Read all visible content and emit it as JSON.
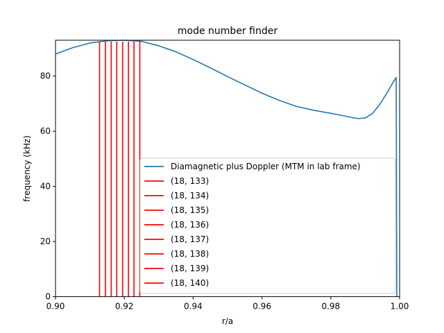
{
  "chart_data": {
    "type": "line",
    "title": "mode number finder",
    "xlabel": "r/a",
    "ylabel": "frequency (kHz)",
    "xlim": [
      0.9,
      1.0
    ],
    "ylim": [
      0,
      93
    ],
    "xticks": [
      0.9,
      0.92,
      0.94,
      0.96,
      0.98,
      1.0
    ],
    "xtick_labels": [
      "0.90",
      "0.92",
      "0.94",
      "0.96",
      "0.98",
      "1.00"
    ],
    "yticks": [
      0,
      20,
      40,
      60,
      80
    ],
    "ytick_labels": [
      "0",
      "20",
      "40",
      "60",
      "80"
    ],
    "grid": false,
    "legend_position": "lower-right",
    "series": [
      {
        "name": "Diamagnetic plus Doppler (MTM in lab frame)",
        "color": "#1f77b4",
        "x": [
          0.9,
          0.905,
          0.91,
          0.915,
          0.92,
          0.925,
          0.93,
          0.935,
          0.94,
          0.945,
          0.95,
          0.955,
          0.96,
          0.965,
          0.97,
          0.975,
          0.98,
          0.983,
          0.986,
          0.988,
          0.99,
          0.992,
          0.994,
          0.996,
          0.998,
          0.999,
          0.9991,
          0.9992
        ],
        "y": [
          88.0,
          90.3,
          92.0,
          92.8,
          93.0,
          92.6,
          91.0,
          88.8,
          86.0,
          83.0,
          79.8,
          76.8,
          73.8,
          71.2,
          69.0,
          67.6,
          66.5,
          65.8,
          65.0,
          64.6,
          64.8,
          66.3,
          69.3,
          73.2,
          77.5,
          79.5,
          40.0,
          0.0
        ]
      },
      {
        "name": "(18, 133)",
        "color": "#ff0000",
        "x": [
          0.9128,
          0.9128
        ],
        "y": [
          0,
          92.5
        ]
      },
      {
        "name": "(18, 134)",
        "color": "#ff0000",
        "x": [
          0.9145,
          0.9145
        ],
        "y": [
          0,
          92.5
        ]
      },
      {
        "name": "(18, 135)",
        "color": "#ff0000",
        "x": [
          0.9162,
          0.9162
        ],
        "y": [
          0,
          92.5
        ]
      },
      {
        "name": "(18, 136)",
        "color": "#ff0000",
        "x": [
          0.9178,
          0.9178
        ],
        "y": [
          0,
          92.5
        ]
      },
      {
        "name": "(18, 137)",
        "color": "#ff0000",
        "x": [
          0.9195,
          0.9195
        ],
        "y": [
          0,
          92.5
        ]
      },
      {
        "name": "(18, 138)",
        "color": "#ff0000",
        "x": [
          0.9212,
          0.9212
        ],
        "y": [
          0,
          92.5
        ]
      },
      {
        "name": "(18, 139)",
        "color": "#ff0000",
        "x": [
          0.9228,
          0.9228
        ],
        "y": [
          0,
          92.5
        ]
      },
      {
        "name": "(18, 140)",
        "color": "#ff0000",
        "x": [
          0.9245,
          0.9245
        ],
        "y": [
          0,
          92.5
        ]
      }
    ]
  }
}
